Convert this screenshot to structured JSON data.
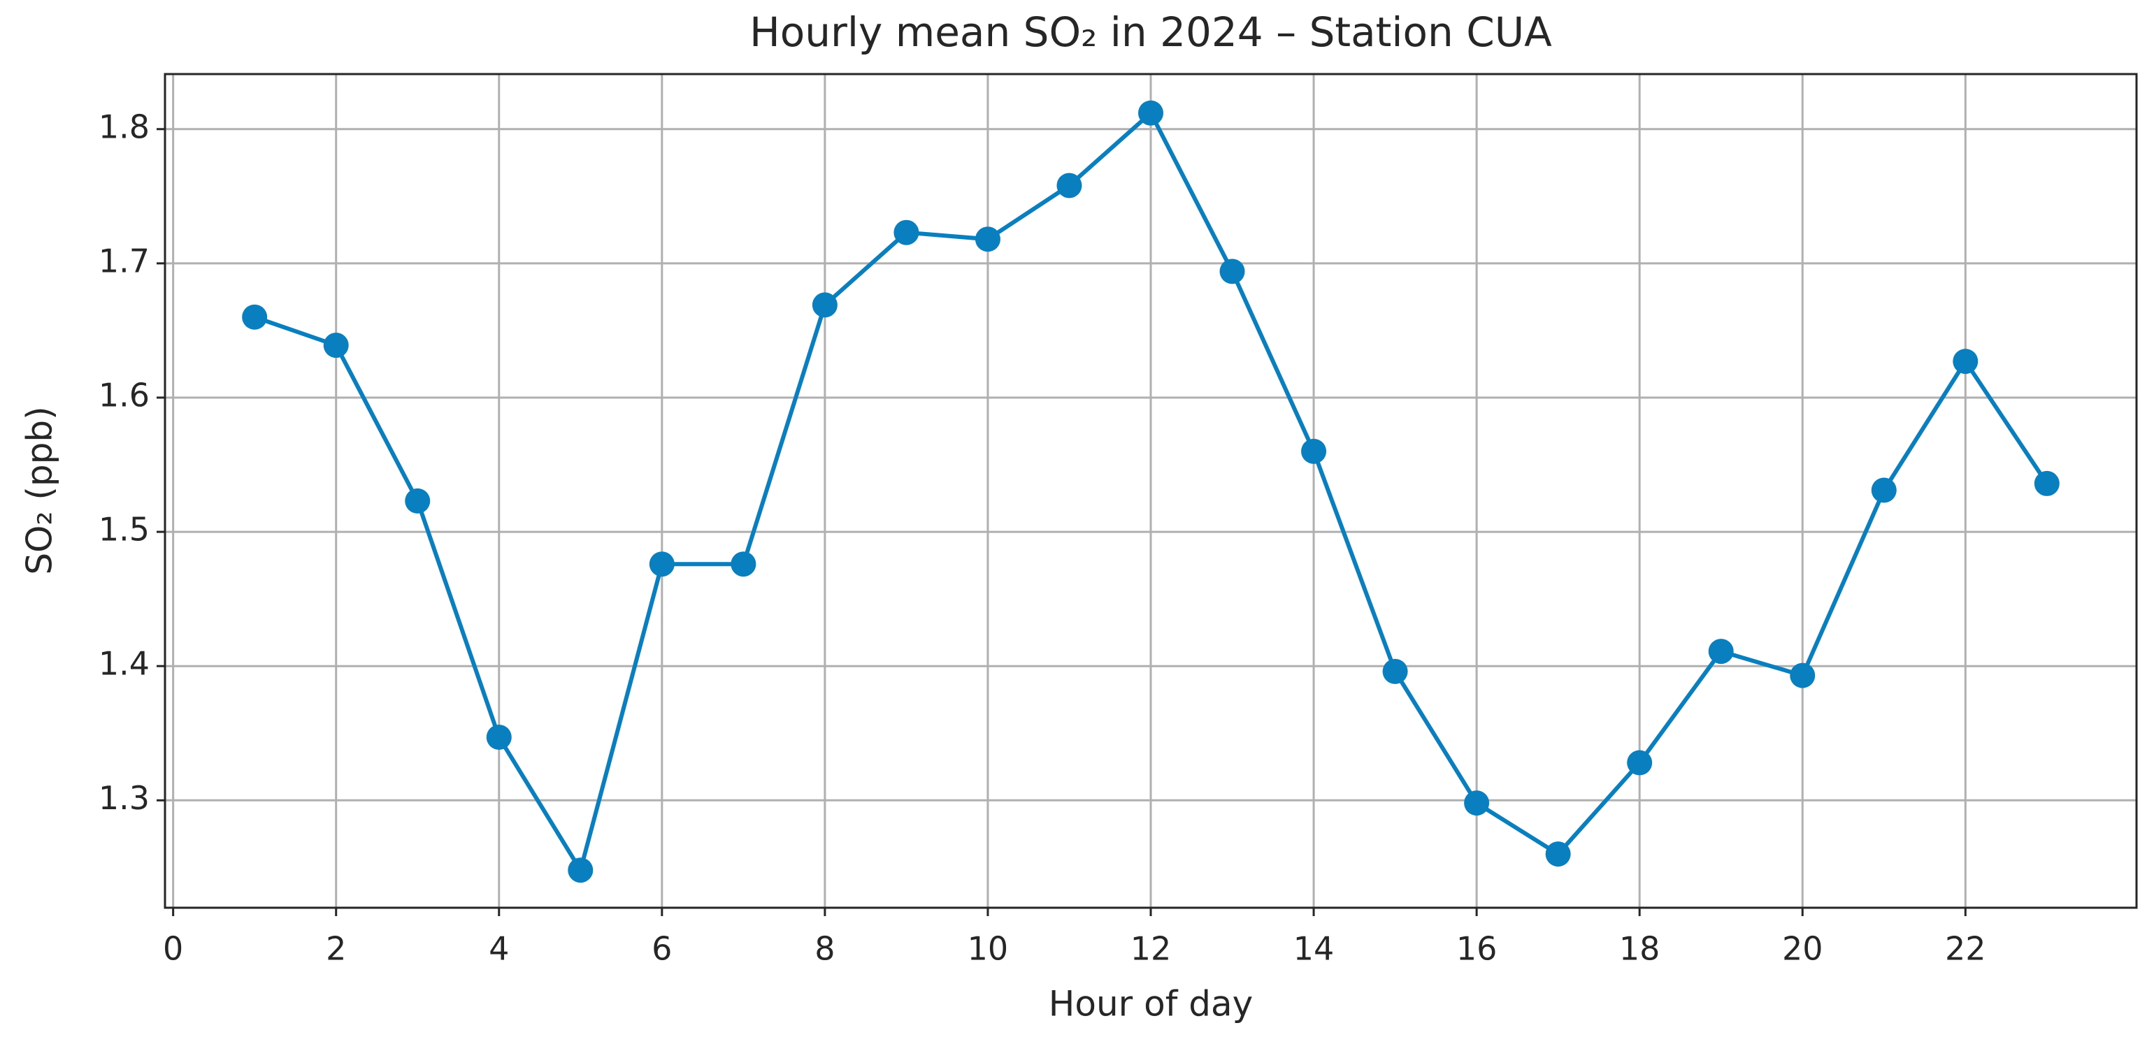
{
  "chart_data": {
    "type": "line",
    "title": "Hourly mean SO₂ in 2024 – Station CUA",
    "x_label": "Hour of day",
    "y_label": "SO₂ (ppb)",
    "x": [
      1,
      2,
      3,
      4,
      5,
      6,
      7,
      8,
      9,
      10,
      11,
      12,
      13,
      14,
      15,
      16,
      17,
      18,
      19,
      20,
      21,
      22,
      23
    ],
    "series": [
      {
        "name": "SO₂",
        "color": "#0a7fbf",
        "values": [
          1.66,
          1.639,
          1.523,
          1.347,
          1.248,
          1.476,
          1.476,
          1.669,
          1.723,
          1.718,
          1.758,
          1.812,
          1.694,
          1.56,
          1.396,
          1.298,
          1.26,
          1.328,
          1.411,
          1.393,
          1.531,
          1.627,
          1.536
        ]
      }
    ],
    "xlim": [
      -0.1,
      24.1
    ],
    "xticks": [
      0,
      2,
      4,
      6,
      8,
      10,
      12,
      14,
      16,
      18,
      20,
      22
    ],
    "ylim": [
      1.22,
      1.841
    ],
    "yticks": [
      1.3,
      1.4,
      1.5,
      1.6,
      1.7,
      1.8
    ],
    "grid": true,
    "markers": true
  }
}
